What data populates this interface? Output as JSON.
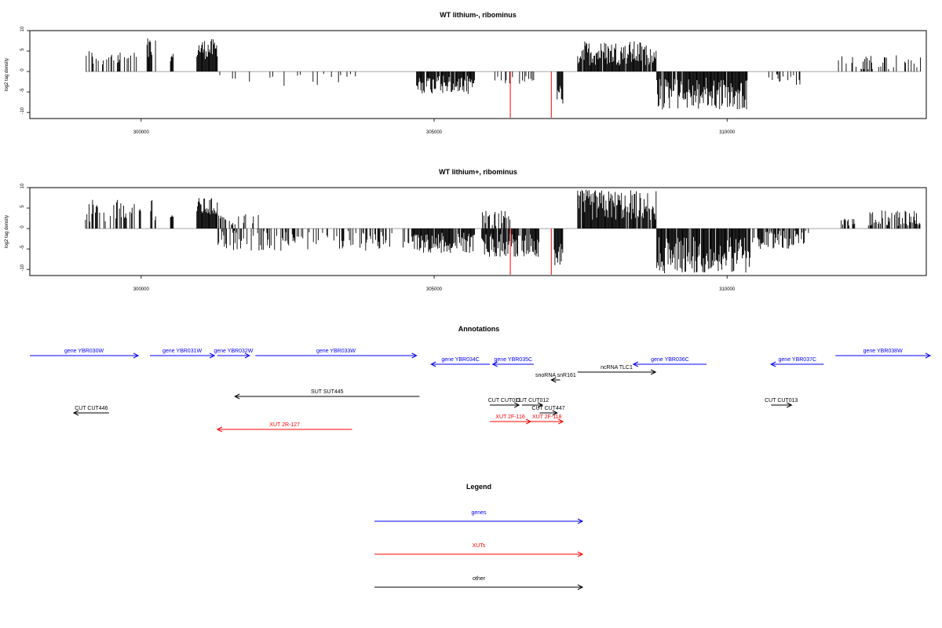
{
  "colors": {
    "gene": "#0000ff",
    "xut": "#ff0000",
    "other": "#000000",
    "axis": "#000000",
    "zero": "#888888",
    "highlight": "#ff0000"
  },
  "chart_data": [
    {
      "type": "bar",
      "title": "WT lithium-, ribominus",
      "ylabel": "log2 tag density",
      "xlim": [
        298100,
        313400
      ],
      "ylim": [
        -11.5,
        10
      ],
      "xticks": [
        300000,
        305000,
        310000
      ],
      "xtick_labels": [
        "300000",
        "305000",
        "310000"
      ],
      "yticks": [
        10,
        5,
        0,
        -5,
        -10
      ],
      "ytick_labels": [
        "10",
        "5",
        "0",
        "-5",
        "-10"
      ],
      "highlight_lines": [
        306300,
        307000
      ],
      "regions": [
        {
          "start": 299050,
          "end": 299950,
          "sign": 1,
          "min": 1,
          "max": 5.5,
          "density": 0.35
        },
        {
          "start": 300100,
          "end": 300250,
          "sign": 1,
          "min": 2,
          "max": 8.5,
          "density": 0.6
        },
        {
          "start": 300500,
          "end": 300550,
          "sign": 1,
          "min": 2.5,
          "max": 4.5,
          "density": 1
        },
        {
          "start": 300950,
          "end": 301300,
          "sign": 1,
          "min": 3,
          "max": 8,
          "density": 1
        },
        {
          "start": 301330,
          "end": 303800,
          "sign": -1,
          "min": 0.5,
          "max": 3.5,
          "density": 0.08
        },
        {
          "start": 304700,
          "end": 305700,
          "sign": -1,
          "min": 1,
          "max": 5.5,
          "density": 0.9
        },
        {
          "start": 306000,
          "end": 306700,
          "sign": -1,
          "min": 0.5,
          "max": 3,
          "density": 0.3
        },
        {
          "start": 307100,
          "end": 307200,
          "sign": -1,
          "min": 3,
          "max": 8,
          "density": 1
        },
        {
          "start": 307450,
          "end": 308800,
          "sign": 1,
          "min": 1.5,
          "max": 7.5,
          "density": 0.9
        },
        {
          "start": 308800,
          "end": 310350,
          "sign": -1,
          "min": 1.5,
          "max": 9.5,
          "density": 0.95
        },
        {
          "start": 310700,
          "end": 311250,
          "sign": -1,
          "min": 0.5,
          "max": 3.5,
          "density": 0.25
        },
        {
          "start": 311900,
          "end": 313300,
          "sign": 1,
          "min": 0.5,
          "max": 4,
          "density": 0.25
        }
      ]
    },
    {
      "type": "bar",
      "title": "WT lithium+, ribominus",
      "ylabel": "log2 tag density",
      "xlim": [
        298100,
        313400
      ],
      "ylim": [
        -11.5,
        10
      ],
      "xticks": [
        300000,
        305000,
        310000
      ],
      "xtick_labels": [
        "300000",
        "305000",
        "310000"
      ],
      "yticks": [
        10,
        5,
        0,
        -5,
        -10
      ],
      "ytick_labels": [
        "10",
        "5",
        "0",
        "-5",
        "-10"
      ],
      "highlight_lines": [
        306300,
        307000
      ],
      "regions": [
        {
          "start": 299050,
          "end": 300000,
          "sign": 1,
          "min": 1,
          "max": 7,
          "density": 0.5
        },
        {
          "start": 300150,
          "end": 300250,
          "sign": 1,
          "min": 2,
          "max": 7.5,
          "density": 0.6
        },
        {
          "start": 300500,
          "end": 300550,
          "sign": 1,
          "min": 2.5,
          "max": 3.5,
          "density": 1
        },
        {
          "start": 300950,
          "end": 301300,
          "sign": 1,
          "min": 3,
          "max": 7.5,
          "density": 1
        },
        {
          "start": 301300,
          "end": 302000,
          "sign": 1,
          "min": 0.5,
          "max": 3.5,
          "density": 0.3
        },
        {
          "start": 301300,
          "end": 304700,
          "sign": -1,
          "min": 0.5,
          "max": 5.5,
          "density": 0.35
        },
        {
          "start": 304700,
          "end": 305700,
          "sign": -1,
          "min": 1,
          "max": 6,
          "density": 0.9
        },
        {
          "start": 305800,
          "end": 306300,
          "sign": 1,
          "min": 0.5,
          "max": 4.5,
          "density": 0.5
        },
        {
          "start": 305800,
          "end": 306800,
          "sign": -1,
          "min": 1,
          "max": 7,
          "density": 0.85
        },
        {
          "start": 307050,
          "end": 307200,
          "sign": -1,
          "min": 3,
          "max": 9,
          "density": 1
        },
        {
          "start": 307450,
          "end": 308800,
          "sign": 1,
          "min": 2,
          "max": 9.5,
          "density": 0.95
        },
        {
          "start": 308800,
          "end": 310400,
          "sign": -1,
          "min": 2,
          "max": 11,
          "density": 0.95
        },
        {
          "start": 310400,
          "end": 311400,
          "sign": -1,
          "min": 0.5,
          "max": 5,
          "density": 0.6
        },
        {
          "start": 311900,
          "end": 312200,
          "sign": 1,
          "min": 0.5,
          "max": 2.5,
          "density": 0.3
        },
        {
          "start": 312400,
          "end": 313300,
          "sign": 1,
          "min": 0.5,
          "max": 4.5,
          "density": 0.6
        }
      ]
    }
  ],
  "annotations": {
    "title": "Annotations",
    "items": [
      {
        "label": "gene YBR030W",
        "type": "gene",
        "dir": "right",
        "row": 0,
        "start": 298100,
        "end": 299950
      },
      {
        "label": "gene YBR031W",
        "type": "gene",
        "dir": "right",
        "row": 0,
        "start": 300150,
        "end": 301250
      },
      {
        "label": "gene YBR032W",
        "type": "gene",
        "dir": "right",
        "row": 0,
        "start": 301300,
        "end": 301850
      },
      {
        "label": "gene YBR033W",
        "type": "gene",
        "dir": "right",
        "row": 0,
        "start": 301950,
        "end": 304700
      },
      {
        "label": "gene YBR034C",
        "type": "gene",
        "dir": "left",
        "row": 1,
        "start": 304950,
        "end": 305950
      },
      {
        "label": "gene YBR035C",
        "type": "gene",
        "dir": "left",
        "row": 1,
        "start": 306000,
        "end": 306700
      },
      {
        "label": "gene YBR036C",
        "type": "gene",
        "dir": "left",
        "row": 1,
        "start": 308400,
        "end": 309650
      },
      {
        "label": "gene YBR037C",
        "type": "gene",
        "dir": "left",
        "row": 1,
        "start": 310750,
        "end": 311650
      },
      {
        "label": "gene YBR038W",
        "type": "gene",
        "dir": "right",
        "row": 0,
        "start": 311850,
        "end": 314600
      },
      {
        "label": "ncRNA TLC1",
        "type": "other",
        "dir": "right",
        "row": 2,
        "start": 307450,
        "end": 308780
      },
      {
        "label": "snoRNA snR161",
        "type": "other",
        "dir": "left",
        "row": 3,
        "start": 307000,
        "end": 307150
      },
      {
        "label": "SUT SUT445",
        "type": "other",
        "dir": "left",
        "row": 4,
        "start": 301600,
        "end": 304750
      },
      {
        "label": "CUT CUT446",
        "type": "other",
        "dir": "left",
        "row": 5,
        "start": 298850,
        "end": 299450
      },
      {
        "label": "CUT CUT011",
        "type": "other",
        "dir": "right",
        "row": 6,
        "start": 305950,
        "end": 306450
      },
      {
        "label": "CUT CUT012",
        "type": "other",
        "dir": "right",
        "row": 6,
        "start": 306500,
        "end": 306850
      },
      {
        "label": "CUT CUT447",
        "type": "other",
        "dir": "right",
        "row": 7,
        "start": 306800,
        "end": 307100
      },
      {
        "label": "CUT CUT013",
        "type": "other",
        "dir": "right",
        "row": 6,
        "start": 310750,
        "end": 311100
      },
      {
        "label": "XUT 2R-127",
        "type": "xut",
        "dir": "left",
        "row": 8,
        "start": 301300,
        "end": 303600
      },
      {
        "label": "XUT 2F-116",
        "type": "xut",
        "dir": "right",
        "row": 9,
        "start": 305950,
        "end": 306650
      },
      {
        "label": "XUT 2F-118",
        "type": "xut",
        "dir": "right",
        "row": 9,
        "start": 306650,
        "end": 307200
      }
    ]
  },
  "legend": {
    "title": "Legend",
    "items": [
      {
        "label": "genes",
        "type": "gene"
      },
      {
        "label": "XUTs",
        "type": "xut"
      },
      {
        "label": "other",
        "type": "other"
      }
    ]
  }
}
